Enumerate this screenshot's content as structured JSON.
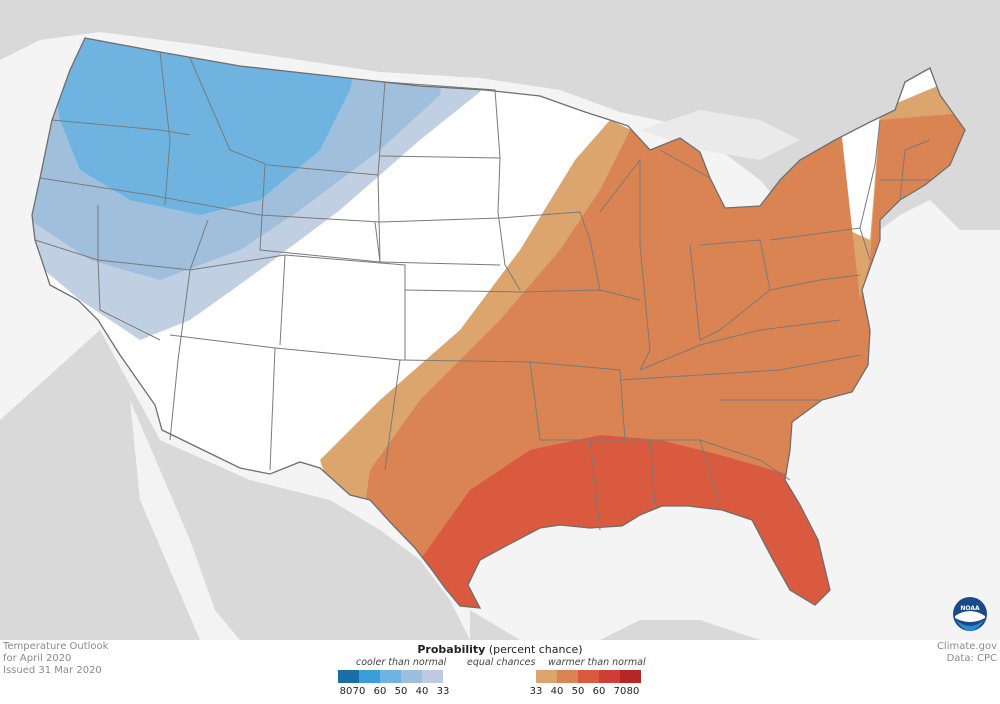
{
  "info": {
    "title": "Temperature Outlook",
    "period": "for April 2020",
    "issued": "Issued 31 Mar 2020"
  },
  "credit": {
    "site": "Climate.gov",
    "data": "Data: CPC"
  },
  "legend": {
    "title_bold": "Probability",
    "title_rest": " (percent chance)",
    "cooler_label": "cooler than normal",
    "equal_label": "equal chances",
    "warmer_label": "warmer than normal",
    "ticks": [
      "80",
      "70",
      "60",
      "50",
      "40",
      "33",
      "33",
      "40",
      "50",
      "60",
      "70",
      "80"
    ],
    "cool_colors": [
      "#1a6ea8",
      "#3c9ed8",
      "#6fb3e0",
      "#9bbfdc",
      "#bccbe2"
    ],
    "equal_color": "#ffffff",
    "warm_colors": [
      "#dca56e",
      "#da8454",
      "#d95a3f",
      "#cf3d36",
      "#b52626"
    ]
  },
  "logo": {
    "icon": "noaa-logo",
    "text": "NOAA"
  }
}
